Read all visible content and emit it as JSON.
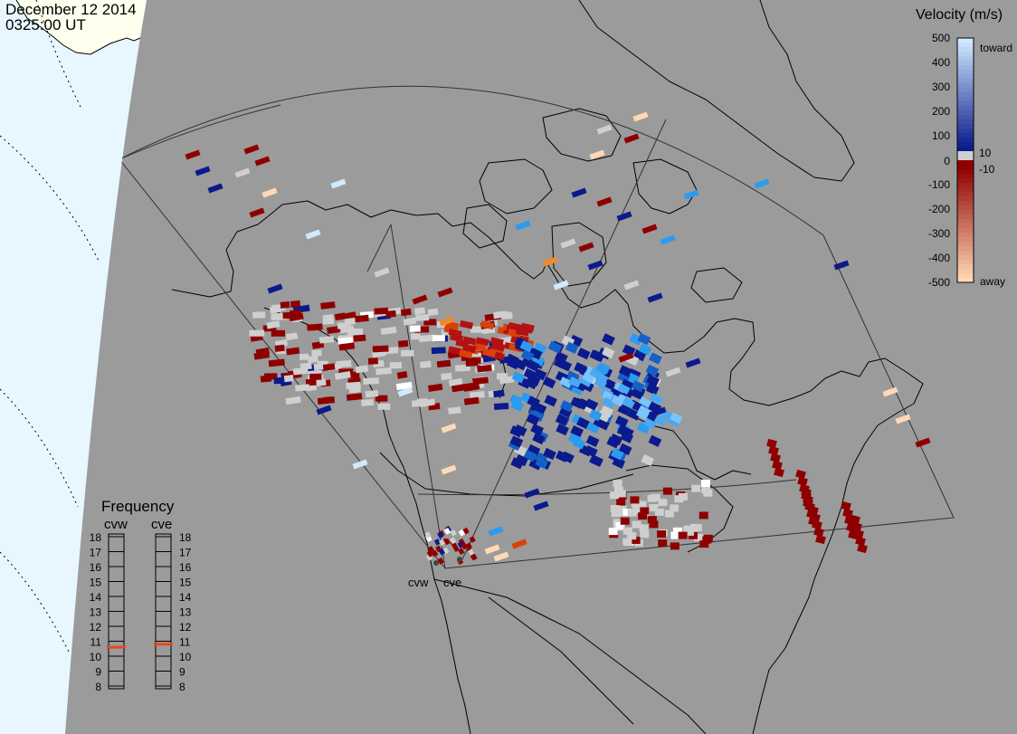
{
  "header": {
    "date": "December 12 2014",
    "time": "0325:00 UT"
  },
  "velocity_scale": {
    "title": "Velocity (m/s)",
    "ticks": [
      "500",
      "400",
      "300",
      "200",
      "100",
      "10",
      "0",
      "-10",
      "-100",
      "-200",
      "-300",
      "-400",
      "-500"
    ],
    "end_labels": {
      "top": "toward",
      "bottom": "away"
    },
    "colors": {
      "toward_strong": "#cfeaff",
      "toward_mid": "#2a9bf0",
      "toward_weak": "#0b1a8c",
      "ground_scatter": "#cfcfcf",
      "away_weak": "#8e0000",
      "away_mid": "#d8420a",
      "away_strong": "#ffd9b6"
    }
  },
  "frequency_panel": {
    "title": "Frequency",
    "radar_left": "cvw",
    "radar_right": "cve",
    "scale": [
      "18",
      "17",
      "16",
      "15",
      "14",
      "13",
      "12",
      "11",
      "10",
      "9",
      "8"
    ],
    "left_freq_mhz": 10.6,
    "right_freq_mhz": 10.8,
    "marker_color": "#e8481c"
  },
  "radars": [
    {
      "name": "cvw",
      "label": "cvw"
    },
    {
      "name": "cve",
      "label": "cve"
    }
  ],
  "map_colors": {
    "ocean_gray": "#9b9b9b",
    "daylight": "#ffffee",
    "daylight_ocean": "#e8f7ff",
    "coast": "#000000"
  }
}
